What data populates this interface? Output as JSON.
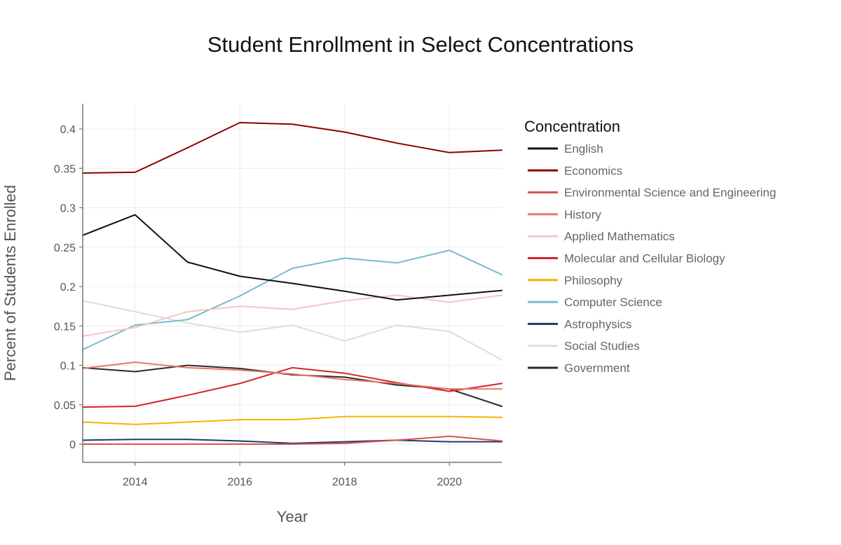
{
  "chart_data": {
    "type": "line",
    "title": "Student Enrollment in Select Concentrations",
    "xlabel": "Year",
    "ylabel": "Percent of Students Enrolled",
    "legend_title": "Concentration",
    "legend_position": "right",
    "grid": true,
    "xlim": [
      2013,
      2021
    ],
    "ylim": [
      -0.018,
      0.43
    ],
    "x_ticks": [
      2014,
      2016,
      2018,
      2020
    ],
    "x_tick_labels": [
      "2014",
      "2016",
      "2018",
      "2020"
    ],
    "y_ticks": [
      0,
      0.05,
      0.1,
      0.15,
      0.2,
      0.25,
      0.3,
      0.35,
      0.4
    ],
    "y_tick_labels": [
      "0",
      "0.05",
      "0.1",
      "0.15",
      "0.2",
      "0.25",
      "0.3",
      "0.35",
      "0.4"
    ],
    "x": [
      2013,
      2014,
      2015,
      2016,
      2017,
      2018,
      2019,
      2020,
      2021
    ],
    "series": [
      {
        "name": "English",
        "color": "#111111",
        "values": [
          0.265,
          0.291,
          0.231,
          0.213,
          0.204,
          0.194,
          0.183,
          0.189,
          0.195
        ]
      },
      {
        "name": "Economics",
        "color": "#8b0000",
        "values": [
          0.344,
          0.345,
          0.376,
          0.408,
          0.406,
          0.396,
          0.382,
          0.37,
          0.373
        ]
      },
      {
        "name": "Environmental Science and Engineering",
        "color": "#d9534f",
        "values": [
          0.0,
          0.0,
          0.0,
          0.0,
          0.0,
          0.001,
          0.005,
          0.01,
          0.004
        ]
      },
      {
        "name": "History",
        "color": "#e8766b",
        "values": [
          0.096,
          0.104,
          0.097,
          0.094,
          0.089,
          0.082,
          0.077,
          0.07,
          0.07
        ]
      },
      {
        "name": "Applied Mathematics",
        "color": "#f4c6c3",
        "values": [
          0.137,
          0.148,
          0.168,
          0.175,
          0.171,
          0.182,
          0.189,
          0.18,
          0.189
        ]
      },
      {
        "name": "Molecular and Cellular Biology",
        "color": "#d6222a",
        "values": [
          0.047,
          0.048,
          0.062,
          0.077,
          0.097,
          0.09,
          0.078,
          0.067,
          0.077
        ]
      },
      {
        "name": "Philosophy",
        "color": "#f5b400",
        "values": [
          0.028,
          0.025,
          0.028,
          0.031,
          0.031,
          0.035,
          0.035,
          0.035,
          0.034
        ]
      },
      {
        "name": "Computer Science",
        "color": "#74bccb",
        "values": [
          0.12,
          0.151,
          0.158,
          0.188,
          0.223,
          0.236,
          0.23,
          0.246,
          0.215
        ]
      },
      {
        "name": "Astrophysics",
        "color": "#1f3b6e",
        "values": [
          0.005,
          0.006,
          0.006,
          0.004,
          0.001,
          0.003,
          0.005,
          0.003,
          0.003
        ]
      },
      {
        "name": "Social Studies",
        "color": "#e3dad9",
        "values": [
          0.182,
          0.168,
          0.154,
          0.142,
          0.151,
          0.131,
          0.151,
          0.143,
          0.107
        ]
      },
      {
        "name": "Government",
        "color": "#2b2b2b",
        "values": [
          0.097,
          0.092,
          0.1,
          0.096,
          0.088,
          0.085,
          0.075,
          0.07,
          0.048
        ]
      }
    ]
  }
}
